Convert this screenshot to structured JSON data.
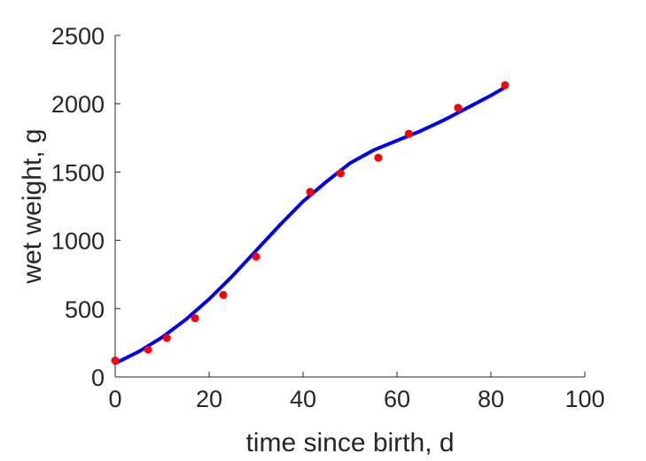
{
  "chart_data": {
    "type": "scatter",
    "title": "",
    "xlabel": "time since birth, d",
    "ylabel": "wet weight, g",
    "xlim": [
      0,
      100
    ],
    "ylim": [
      0,
      2500
    ],
    "xticks": [
      0,
      20,
      40,
      60,
      80,
      100
    ],
    "yticks": [
      0,
      500,
      1000,
      1500,
      2000,
      2500
    ],
    "xtick_labels": [
      "0",
      "20",
      "40",
      "60",
      "80",
      "100"
    ],
    "ytick_labels": [
      "0",
      "500",
      "1000",
      "1500",
      "2000",
      "2500"
    ],
    "grid": false,
    "legend": "none",
    "series": [
      {
        "kind": "scatter",
        "color": "#ff0000",
        "x": [
          0,
          7,
          11,
          17,
          23,
          30,
          41.5,
          48,
          56,
          62.5,
          73,
          83
        ],
        "y": [
          120,
          200,
          285,
          430,
          600,
          880,
          1355,
          1490,
          1605,
          1780,
          1970,
          2135
        ]
      },
      {
        "kind": "line",
        "color": "#0000ff",
        "x": [
          0,
          5,
          10,
          15,
          20,
          25,
          30,
          35,
          40,
          45,
          50,
          55,
          60,
          65,
          70,
          75,
          80,
          83
        ],
        "y": [
          100,
          185,
          290,
          420,
          570,
          740,
          925,
          1110,
          1285,
          1430,
          1565,
          1660,
          1730,
          1800,
          1880,
          1970,
          2060,
          2120
        ]
      }
    ]
  }
}
